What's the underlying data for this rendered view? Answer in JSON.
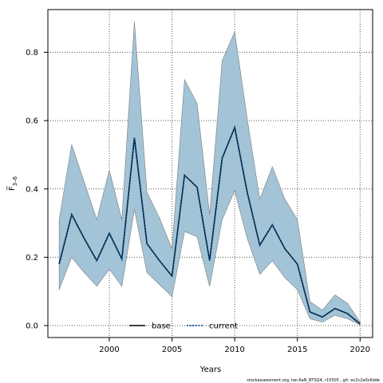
{
  "chart_data": {
    "type": "area",
    "xlabel": "Years",
    "ylabel": "F̅",
    "ylabel_sub": "3–6",
    "xlim": [
      1995.1,
      2021
    ],
    "ylim": [
      -0.035,
      0.925
    ],
    "xticks": [
      2000,
      2005,
      2010,
      2015,
      2020
    ],
    "yticks": [
      0.0,
      0.2,
      0.4,
      0.6,
      0.8
    ],
    "ytick_labels": [
      "0.0",
      "0.2",
      "0.4",
      "0.6",
      "0.8"
    ],
    "grid": true,
    "legend_position": "bottom",
    "band_color": "#a3c4d6",
    "band_stroke": "#7a7a7a",
    "years": [
      1996,
      1997,
      1998,
      1999,
      2000,
      2001,
      2002,
      2003,
      2004,
      2005,
      2006,
      2007,
      2008,
      2009,
      2010,
      2011,
      2012,
      2013,
      2014,
      2015,
      2016,
      2017,
      2018,
      2019,
      2020
    ],
    "series": [
      {
        "name": "base",
        "style": "solid",
        "color": "#000000",
        "values": [
          0.18,
          0.325,
          0.255,
          0.19,
          0.27,
          0.195,
          0.55,
          0.24,
          0.19,
          0.145,
          0.44,
          0.405,
          0.19,
          0.49,
          0.58,
          0.39,
          0.235,
          0.295,
          0.225,
          0.18,
          0.04,
          0.025,
          0.05,
          0.035,
          0.005
        ]
      },
      {
        "name": "current",
        "style": "dotted",
        "color": "#0b5394",
        "values": [
          0.18,
          0.325,
          0.255,
          0.19,
          0.27,
          0.195,
          0.55,
          0.24,
          0.19,
          0.145,
          0.44,
          0.405,
          0.19,
          0.49,
          0.58,
          0.39,
          0.235,
          0.295,
          0.225,
          0.18,
          0.04,
          0.025,
          0.05,
          0.035,
          0.005
        ]
      }
    ],
    "band_upper": [
      0.31,
      0.53,
      0.42,
      0.31,
      0.455,
      0.31,
      0.89,
      0.39,
      0.315,
      0.225,
      0.72,
      0.65,
      0.325,
      0.775,
      0.86,
      0.605,
      0.37,
      0.465,
      0.37,
      0.31,
      0.07,
      0.045,
      0.09,
      0.065,
      0.01
    ],
    "band_lower": [
      0.105,
      0.2,
      0.155,
      0.115,
      0.165,
      0.115,
      0.34,
      0.155,
      0.12,
      0.085,
      0.275,
      0.26,
      0.115,
      0.31,
      0.395,
      0.255,
      0.15,
      0.19,
      0.14,
      0.105,
      0.02,
      0.01,
      0.03,
      0.02,
      0.002
    ]
  },
  "footer": "stockassessment.org,  her.6aN_BTSQ4,  r15505 ,  git:  ec2c2a0c6dde"
}
